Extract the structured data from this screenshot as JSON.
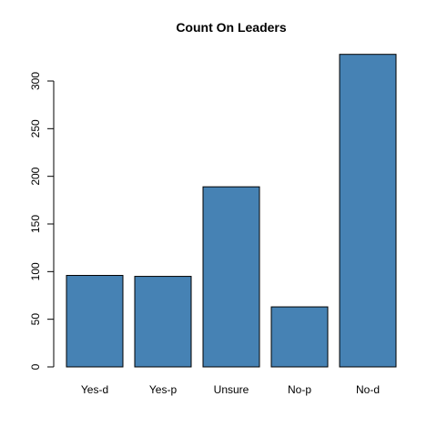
{
  "chart_data": {
    "type": "bar",
    "title": "Count On Leaders",
    "xlabel": "",
    "ylabel": "",
    "categories": [
      "Yes-d",
      "Yes-p",
      "Unsure",
      "No-p",
      "No-d"
    ],
    "values": [
      96,
      95,
      189,
      63,
      328
    ],
    "yticks": [
      0,
      50,
      100,
      150,
      200,
      250,
      300
    ],
    "ylim": [
      0,
      328
    ],
    "bar_color": "#4682B4",
    "bar_edge_color": "#000000",
    "grid": false,
    "legend": "none"
  }
}
